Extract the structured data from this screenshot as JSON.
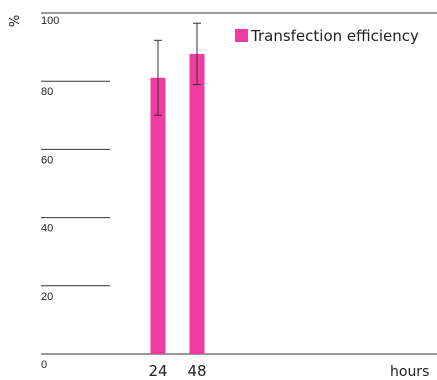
{
  "chart_data": {
    "type": "bar",
    "categories": [
      "24",
      "48"
    ],
    "series": [
      {
        "name": "Transfection efficiency",
        "values": [
          81,
          88
        ],
        "errors": [
          11,
          9
        ],
        "color": "#f03ba0"
      }
    ],
    "ylabel": "%",
    "xlabel": "hours",
    "ylim": [
      0,
      100
    ],
    "yticks": [
      "0",
      "20",
      "40",
      "60",
      "80",
      "100"
    ],
    "grid": true,
    "legend_position": "top-right"
  }
}
